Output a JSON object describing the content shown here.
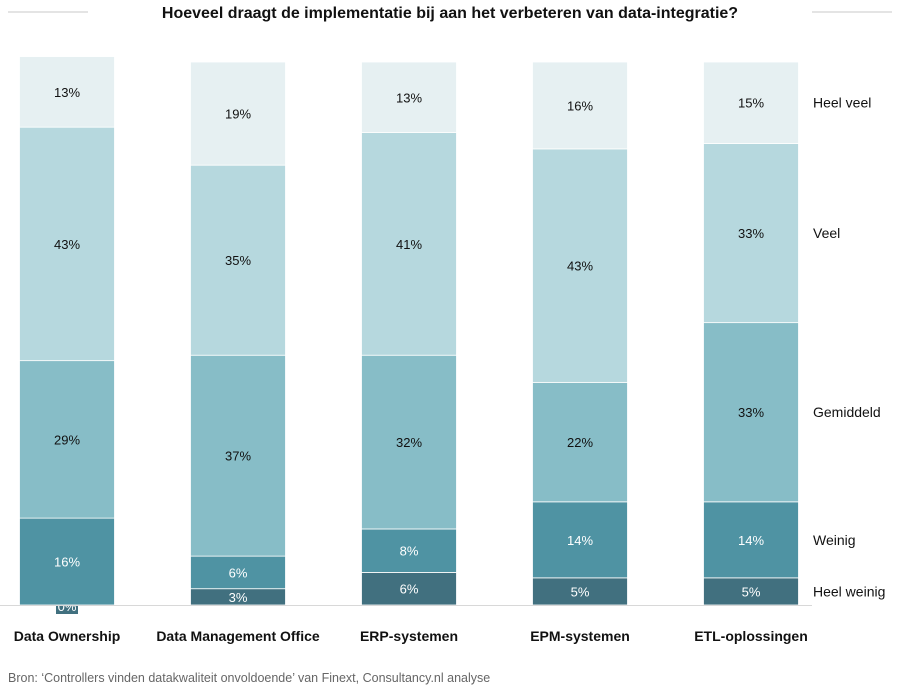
{
  "chart_data": {
    "type": "bar",
    "stacked": true,
    "title": "Hoeveel draagt de implementatie bij aan het verbeteren van data-integratie?",
    "categories": [
      "Data Ownership",
      "Data Management Office",
      "ERP-systemen",
      "EPM-systemen",
      "ETL-oplossingen"
    ],
    "series": [
      {
        "name": "Heel weinig",
        "color": "#41707f",
        "label_color": "#ffffff",
        "values": [
          0,
          3,
          6,
          5,
          5
        ]
      },
      {
        "name": "Weinig",
        "color": "#4f93a3",
        "label_color": "#ffffff",
        "values": [
          16,
          6,
          8,
          14,
          14
        ]
      },
      {
        "name": "Gemiddeld",
        "color": "#87bdc7",
        "label_color": "#111111",
        "values": [
          29,
          37,
          32,
          22,
          33
        ]
      },
      {
        "name": "Veel",
        "color": "#b6d8de",
        "label_color": "#111111",
        "values": [
          43,
          35,
          41,
          43,
          33
        ]
      },
      {
        "name": "Heel veel",
        "color": "#e6f0f2",
        "label_color": "#111111",
        "values": [
          13,
          19,
          13,
          16,
          15
        ]
      }
    ],
    "value_suffix": "%",
    "legend_position": "right",
    "grid": false,
    "xlabel": "",
    "ylabel": "",
    "ylim": [
      0,
      101
    ]
  },
  "source": "Bron: ‘Controllers vinden datakwaliteit onvoldoende’ van Finext, Consultancy.nl analyse"
}
